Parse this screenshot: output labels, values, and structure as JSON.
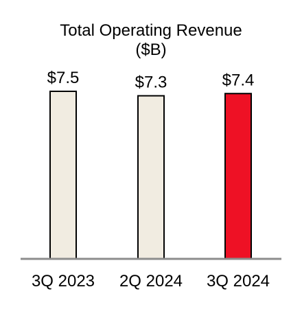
{
  "chart_data": {
    "type": "bar",
    "title": "Total Operating Revenue",
    "subtitle": "($B)",
    "categories": [
      "3Q 2023",
      "2Q 2024",
      "3Q 2024"
    ],
    "values": [
      7.5,
      7.3,
      7.4
    ],
    "data_labels": [
      "$7.5",
      "$7.3",
      "$7.4"
    ],
    "bar_colors": [
      "#F1ECE1",
      "#F1ECE1",
      "#EE1125"
    ],
    "bar_stroke": "#000000",
    "axis_color": "#8C8C8C",
    "ylim": [
      0,
      7.5
    ],
    "xlabel": "",
    "ylabel": "",
    "grid": false,
    "legend": "none"
  }
}
